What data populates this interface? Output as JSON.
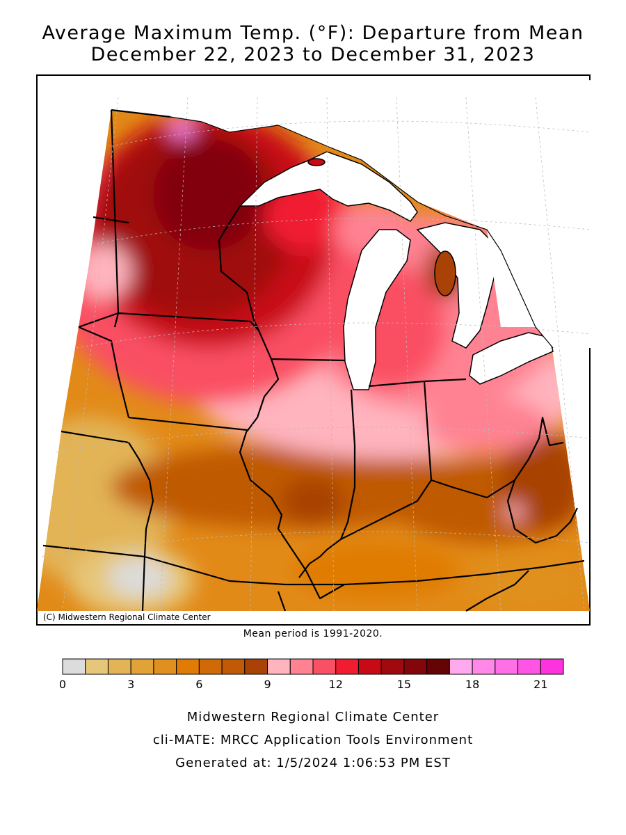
{
  "title": {
    "line1": "Average Maximum Temp. (°F): Departure from Mean",
    "line2": "December 22, 2023 to December 31, 2023"
  },
  "map": {
    "credit": "(C) Midwestern Regional Climate Center",
    "mean_period": "Mean period is 1991-2020."
  },
  "legend": {
    "colors": [
      "#dcdcdc",
      "#e6c678",
      "#e2b456",
      "#e1a338",
      "#e0901e",
      "#e07b05",
      "#d06a06",
      "#c05a06",
      "#a84206",
      "#ffb4be",
      "#ff8292",
      "#fa5064",
      "#f21c30",
      "#c80a14",
      "#a00a0f",
      "#82060a",
      "#640404",
      "#ffaaee",
      "#ff88e8",
      "#ff70e6",
      "#ff55e4",
      "#ff33dd"
    ],
    "ticks": [
      {
        "label": "0",
        "value": 0
      },
      {
        "label": "3",
        "value": 3
      },
      {
        "label": "6",
        "value": 6
      },
      {
        "label": "9",
        "value": 9
      },
      {
        "label": "12",
        "value": 12
      },
      {
        "label": "15",
        "value": 15
      },
      {
        "label": "18",
        "value": 18
      },
      {
        "label": "21",
        "value": 21
      }
    ]
  },
  "footer": {
    "line1": "Midwestern Regional Climate Center",
    "line2": "cli-MATE: MRCC Application Tools Environment",
    "line3": "Generated at: 1/5/2024 1:06:53 PM EST"
  }
}
